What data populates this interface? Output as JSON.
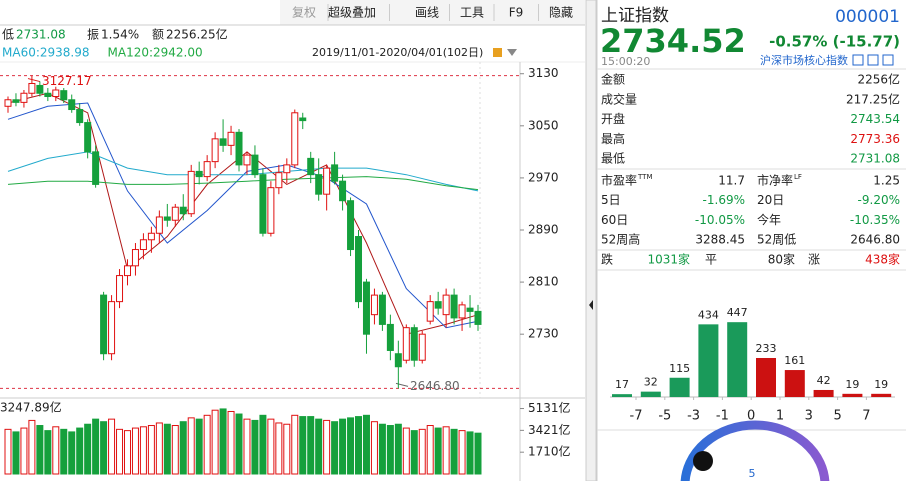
{
  "toolbar": [
    "复权",
    "超级叠加",
    "画线",
    "工具",
    "F9",
    "隐藏"
  ],
  "quote_row": {
    "low_label": "低",
    "low": "2731.08",
    "amp_label": "振",
    "amp": "1.54%",
    "amt_label": "额",
    "amt": "2256.25亿"
  },
  "ma_legend": [
    "MA60:2938.98",
    "MA120:2942.00"
  ],
  "range": "2019/11/01-2020/04/01(102日)",
  "quote": {
    "name": "上证指数",
    "code": "000001",
    "price": "2734.52",
    "change": "-0.57% (-15.77)",
    "time": "15:00:20",
    "tag": "沪深市场核心指数"
  },
  "stats": [
    {
      "label": "金额",
      "value": "2256亿",
      "color": "#222222"
    },
    {
      "label": "成交量",
      "value": "217.25亿",
      "color": "#222222"
    },
    {
      "label": "开盘",
      "value": "2743.54",
      "color": "#119944"
    },
    {
      "label": "最高",
      "value": "2773.36",
      "color": "#dd1111"
    },
    {
      "label": "最低",
      "value": "2731.08",
      "color": "#119944"
    }
  ],
  "stats2": [
    [
      {
        "label": "市盈率",
        "sup": "TTM",
        "value": "11.7",
        "color": "#222222"
      },
      {
        "label": "市净率",
        "sup": "LF",
        "value": "1.25",
        "color": "#222222"
      }
    ],
    [
      {
        "label": "5日",
        "value": "-1.69%",
        "color": "#119944"
      },
      {
        "label": "20日",
        "value": "-9.20%",
        "color": "#119944"
      }
    ],
    [
      {
        "label": "60日",
        "value": "-10.05%",
        "color": "#119944"
      },
      {
        "label": "今年",
        "value": "-10.35%",
        "color": "#119944"
      }
    ],
    [
      {
        "label": "52周高",
        "value": "3288.45",
        "color": "#222222"
      },
      {
        "label": "52周低",
        "value": "2646.80",
        "color": "#222222"
      }
    ]
  ],
  "breadth": {
    "down_label": "跌",
    "down": "1031家",
    "flat_label": "平",
    "flat": "80家",
    "up_label": "涨",
    "up": "438家"
  },
  "gauge_label": "5",
  "chart_data": [
    {
      "type": "candlestick",
      "up_color": "#e01010",
      "down_color": "#15a03c",
      "ylim": [
        2632,
        3148
      ],
      "yticks": [
        2730,
        2810,
        2890,
        2970,
        3050,
        3130
      ],
      "open": [
        3080,
        3090,
        3086,
        3100,
        3112,
        3100,
        3095,
        3104,
        3090,
        3075,
        3055,
        3010,
        2790,
        2700,
        2780,
        2820,
        2835,
        2860,
        2875,
        2885,
        2910,
        2905,
        2925,
        2915,
        2980,
        2972,
        2995,
        3030,
        3020,
        3040,
        2990,
        3005,
        2975,
        2885,
        2955,
        2978,
        2990,
        3062,
        3000,
        2975,
        2945,
        2990,
        2965,
        2935,
        2880,
        2810,
        2760,
        2790,
        2745,
        2700,
        2690,
        2740,
        2690,
        2750,
        2780,
        2760,
        2790,
        2755,
        2770,
        2765
      ],
      "high": [
        3095,
        3100,
        3105,
        3127.17,
        3118,
        3108,
        3110,
        3108,
        3098,
        3085,
        3060,
        3020,
        2795,
        2790,
        2830,
        2845,
        2870,
        2885,
        2895,
        2920,
        2930,
        2930,
        2945,
        2990,
        2995,
        3005,
        3040,
        3060,
        3050,
        3045,
        3010,
        3020,
        2985,
        2965,
        2990,
        3000,
        3075,
        3070,
        3010,
        3000,
        2990,
        3010,
        2975,
        2940,
        2890,
        2815,
        2800,
        2795,
        2760,
        2720,
        2745,
        2745,
        2735,
        2790,
        2795,
        2800,
        2800,
        2780,
        2790,
        2775
      ],
      "low": [
        3070,
        3080,
        3078,
        3095,
        3095,
        3088,
        3088,
        3085,
        3070,
        3050,
        3000,
        2955,
        2690,
        2690,
        2770,
        2805,
        2820,
        2845,
        2855,
        2870,
        2895,
        2895,
        2905,
        2910,
        2960,
        2965,
        2985,
        3010,
        3005,
        2980,
        2975,
        2970,
        2880,
        2880,
        2945,
        2962,
        2985,
        3045,
        2962,
        2935,
        2920,
        2960,
        2920,
        2850,
        2770,
        2700,
        2745,
        2735,
        2690,
        2646.8,
        2685,
        2680,
        2685,
        2745,
        2760,
        2740,
        2745,
        2735,
        2740,
        2735
      ],
      "close": [
        3090,
        3086,
        3100,
        3115,
        3100,
        3095,
        3105,
        3090,
        3075,
        3055,
        3010,
        2960,
        2700,
        2780,
        2820,
        2835,
        2860,
        2875,
        2885,
        2910,
        2905,
        2925,
        2915,
        2980,
        2972,
        2995,
        3030,
        3020,
        3040,
        2990,
        3005,
        2975,
        2885,
        2955,
        2978,
        2990,
        3070,
        3058,
        2975,
        2945,
        2985,
        2965,
        2935,
        2860,
        2780,
        2730,
        2790,
        2745,
        2705,
        2680,
        2740,
        2690,
        2730,
        2780,
        2770,
        2790,
        2755,
        2775,
        2765,
        2745
      ],
      "ma_x": [
        0,
        5,
        10,
        15,
        20,
        25,
        30,
        35,
        40,
        45,
        50,
        55,
        59
      ],
      "ma_series": [
        {
          "color": "#b01818",
          "values": [
            3085,
            3100,
            3070,
            2830,
            2880,
            2960,
            3010,
            2960,
            2990,
            2870,
            2730,
            2745,
            2760
          ]
        },
        {
          "color": "#2255cc",
          "values": [
            3060,
            3080,
            3085,
            2950,
            2870,
            2920,
            2980,
            2990,
            2970,
            2930,
            2800,
            2740,
            2750
          ]
        },
        {
          "name": "MA60:2938.98",
          "color": "#22aacc",
          "values": [
            2980,
            3000,
            3010,
            2985,
            2975,
            2975,
            2975,
            2980,
            2985,
            2985,
            2975,
            2960,
            2950
          ]
        },
        {
          "name": "MA120:2942.00",
          "color": "#22aa44",
          "values": [
            2960,
            2965,
            2965,
            2960,
            2960,
            2962,
            2965,
            2968,
            2970,
            2972,
            2968,
            2958,
            2952
          ]
        }
      ],
      "annotations": [
        {
          "value": 3127.17,
          "label": "3127.17"
        },
        {
          "value": 2646.8,
          "label": "2646.80"
        }
      ]
    },
    {
      "type": "volume",
      "label": "3247.89亿",
      "ylim": [
        0,
        5800
      ],
      "yticks": [
        {
          "value": 1710,
          "label": "1710亿"
        },
        {
          "value": 3421,
          "label": "3421亿"
        },
        {
          "value": 5131,
          "label": "5131亿"
        }
      ],
      "values": [
        3500,
        3300,
        3600,
        4200,
        3800,
        3400,
        3700,
        3500,
        3300,
        3600,
        3900,
        4300,
        4100,
        4300,
        3500,
        3400,
        3600,
        3700,
        3800,
        4000,
        3900,
        3800,
        4100,
        4400,
        4300,
        4600,
        5000,
        5100,
        4900,
        4700,
        4300,
        4200,
        4600,
        4300,
        4000,
        3900,
        4600,
        4500,
        4500,
        4300,
        4200,
        4100,
        4300,
        4400,
        4500,
        4600,
        4100,
        3900,
        3800,
        3900,
        3600,
        3400,
        3500,
        3800,
        3600,
        3700,
        3500,
        3400,
        3300,
        3200
      ]
    },
    {
      "type": "bar",
      "ylim": [
        0,
        460
      ],
      "values": [
        17,
        32,
        115,
        434,
        447,
        233,
        161,
        42,
        19,
        19
      ],
      "colors": [
        "#1a9a5a",
        "#1a9a5a",
        "#1a9a5a",
        "#1a9a5a",
        "#1a9a5a",
        "#cc1111",
        "#cc1111",
        "#cc1111",
        "#cc1111",
        "#cc1111"
      ],
      "xticks": [
        -7,
        -5,
        -3,
        -1,
        0,
        1,
        3,
        5,
        7
      ]
    }
  ]
}
